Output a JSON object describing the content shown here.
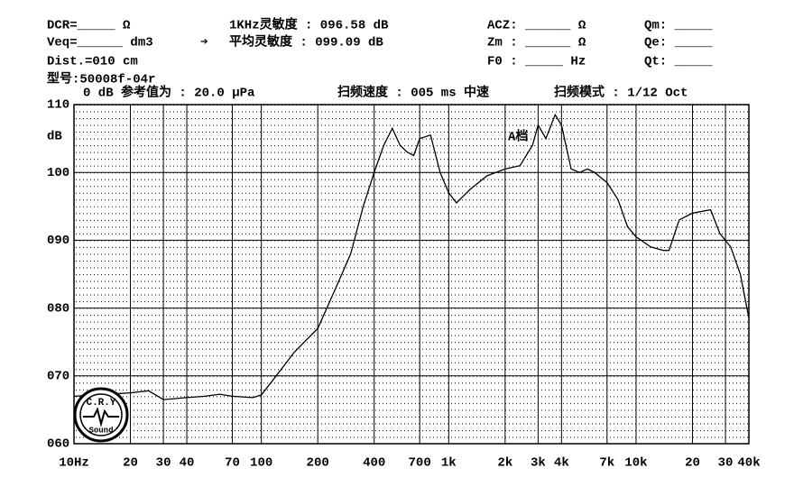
{
  "header": {
    "dcr": "DCR=_____ Ω",
    "veq": "Veq=______ dm3",
    "dist": "Dist.=010 cm",
    "model": "型号:50008f-04r",
    "arrow": "➜",
    "sens_1k": "1KHz灵敏度 : 096.58 dB",
    "sens_avg": "平均灵敏度 : 099.09 dB",
    "acz": "ACZ: ______ Ω",
    "zm": "Zm : ______ Ω",
    "f0": "F0 : _____ Hz",
    "qm": "Qm: _____",
    "qe": "Qe: _____",
    "qt": "Qt: _____",
    "ref": "0 dB 参考值为 : 20.0 μPa",
    "speed": "扫频速度 : 005 ms 中速",
    "mode": "扫频模式 : 1/12 Oct"
  },
  "logo": [
    "C.R.Y",
    "Sound"
  ],
  "chart_data": {
    "type": "line",
    "y_label": "dB",
    "annotation": "A档",
    "color": "#000000",
    "log_x": true,
    "grid": true,
    "x": [
      10,
      20,
      25,
      30,
      40,
      50,
      60,
      70,
      90,
      100,
      120,
      150,
      200,
      250,
      300,
      350,
      400,
      450,
      500,
      550,
      600,
      650,
      700,
      800,
      900,
      1000,
      1100,
      1300,
      1600,
      2000,
      2400,
      2800,
      3000,
      3300,
      3700,
      4000,
      4500,
      5000,
      5500,
      6000,
      7000,
      8000,
      9000,
      10000,
      12000,
      14000,
      15000,
      17000,
      20000,
      25000,
      28000,
      32000,
      36000,
      40000
    ],
    "values": [
      67,
      67.5,
      67.8,
      66.5,
      66.8,
      67,
      67.3,
      67,
      66.8,
      67.2,
      70,
      73.5,
      77,
      83,
      88,
      95,
      100,
      104,
      106.5,
      104,
      103,
      102.5,
      105,
      105.5,
      100,
      97,
      95.5,
      97.5,
      99.5,
      100.5,
      101,
      104,
      107,
      105,
      108.5,
      107,
      100.5,
      100,
      100.5,
      100,
      98.5,
      96,
      92,
      90.5,
      89,
      88.5,
      88.5,
      93,
      94,
      94.5,
      91,
      89,
      85,
      78.5
    ],
    "xlim": [
      10,
      40000
    ],
    "ylim": [
      60,
      110
    ],
    "xticks": [
      {
        "value": 10,
        "label": "10Hz"
      },
      20,
      30,
      40,
      70,
      100,
      200,
      400,
      700,
      {
        "value": 1000,
        "label": "1k"
      },
      {
        "value": 2000,
        "label": "2k"
      },
      {
        "value": 3000,
        "label": "3k"
      },
      {
        "value": 4000,
        "label": "4k"
      },
      {
        "value": 7000,
        "label": "7k"
      },
      {
        "value": 10000,
        "label": "10k"
      },
      {
        "value": 20000,
        "label": "20"
      },
      {
        "value": 30000,
        "label": "30"
      },
      {
        "value": 40000,
        "label": "40k"
      }
    ],
    "yticks": [
      {
        "value": 60,
        "label": "060"
      },
      {
        "value": 70,
        "label": "070"
      },
      {
        "value": 80,
        "label": "080"
      },
      {
        "value": 90,
        "label": "090"
      },
      100,
      110
    ]
  }
}
